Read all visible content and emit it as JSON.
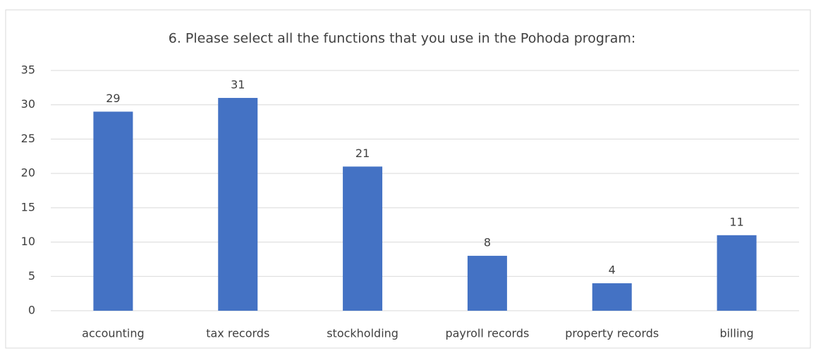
{
  "chart_data": {
    "type": "bar",
    "title": "6. Please select all the functions that you use in the Pohoda program:",
    "categories": [
      "accounting",
      "tax records",
      "stockholding",
      "payroll records",
      "property records",
      "billing"
    ],
    "values": [
      29,
      31,
      21,
      8,
      4,
      11
    ],
    "color": "#4472c4",
    "ylim": [
      0,
      35
    ],
    "yticks": [
      0,
      5,
      10,
      15,
      20,
      25,
      30,
      35
    ],
    "grid": true
  }
}
